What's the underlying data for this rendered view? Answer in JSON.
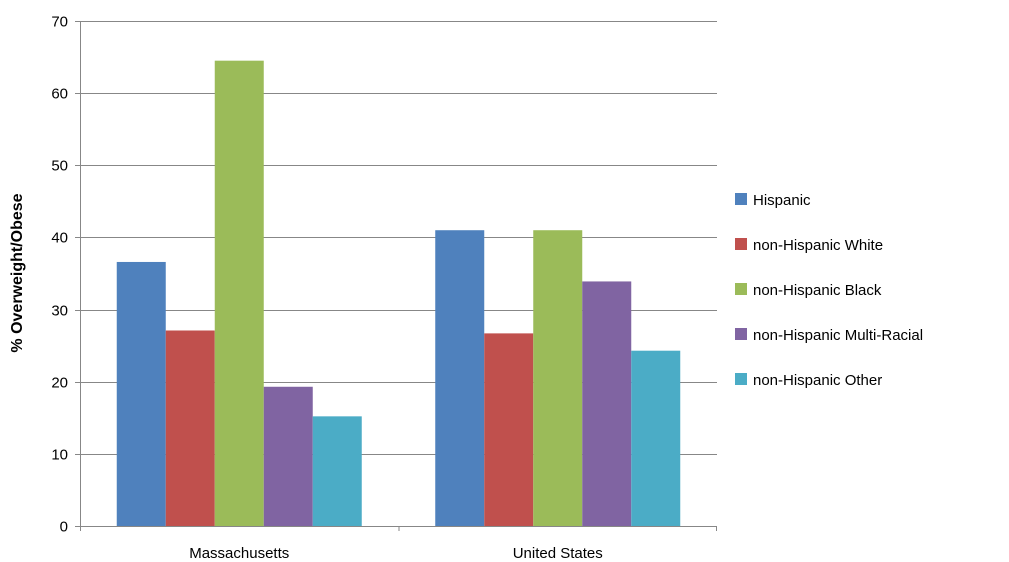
{
  "chart_data": {
    "type": "bar",
    "categories": [
      "Massachusetts",
      "United States"
    ],
    "series": [
      {
        "name": "Hispanic",
        "color": "#4F81BD",
        "values": [
          36.6,
          41.0
        ]
      },
      {
        "name": "non-Hispanic White",
        "color": "#C0504D",
        "values": [
          27.1,
          26.7
        ]
      },
      {
        "name": "non-Hispanic Black",
        "color": "#9BBB59",
        "values": [
          64.5,
          41.0
        ]
      },
      {
        "name": "non-Hispanic Multi-Racial",
        "color": "#8064A2",
        "values": [
          19.3,
          33.9
        ]
      },
      {
        "name": "non-Hispanic Other",
        "color": "#4BACC6",
        "values": [
          15.2,
          24.3
        ]
      }
    ],
    "title": "",
    "xlabel": "",
    "ylabel": "% Overweight/Obese",
    "ylim": [
      0,
      70
    ],
    "yticks": [
      0,
      10,
      20,
      30,
      40,
      50,
      60,
      70
    ],
    "grid": true,
    "legend_position": "right"
  }
}
